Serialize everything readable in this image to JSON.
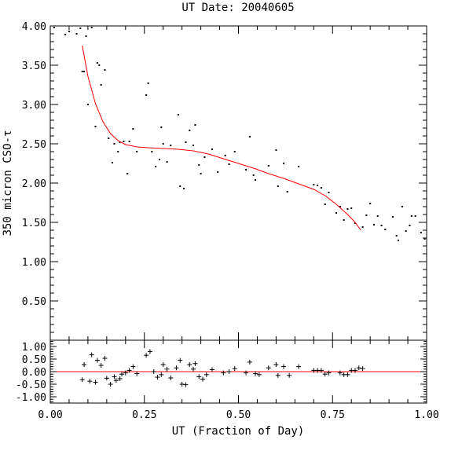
{
  "chart_data": [
    {
      "type": "scatter",
      "title": "UT Date: 20040605",
      "xlabel": "",
      "ylabel": "350 micron CSO-τ",
      "xlim": [
        0.0,
        1.0
      ],
      "ylim": [
        0.0,
        4.0
      ],
      "x_ticks": [
        "0.00",
        "0.25",
        "0.50",
        "0.75",
        "1.00"
      ],
      "y_ticks": [
        "0.50",
        "1.00",
        "1.50",
        "2.00",
        "2.50",
        "3.00",
        "3.50",
        "4.00"
      ],
      "grid": false,
      "point_color": "#000000",
      "fit_color": "#ff0000",
      "series": [
        {
          "points": [
            [
              0.01,
              3.98
            ],
            [
              0.04,
              3.89
            ],
            [
              0.05,
              3.93
            ],
            [
              0.07,
              3.9
            ],
            [
              0.08,
              3.97
            ],
            [
              0.085,
              3.42
            ],
            [
              0.09,
              3.42
            ],
            [
              0.095,
              3.87
            ],
            [
              0.1,
              3.0
            ],
            [
              0.11,
              3.98
            ],
            [
              0.12,
              2.72
            ],
            [
              0.125,
              3.53
            ],
            [
              0.13,
              3.5
            ],
            [
              0.135,
              3.25
            ],
            [
              0.145,
              3.44
            ],
            [
              0.155,
              2.57
            ],
            [
              0.165,
              2.26
            ],
            [
              0.17,
              2.5
            ],
            [
              0.18,
              2.4
            ],
            [
              0.185,
              2.52
            ],
            [
              0.195,
              2.53
            ],
            [
              0.205,
              2.12
            ],
            [
              0.21,
              2.53
            ],
            [
              0.22,
              2.69
            ],
            [
              0.23,
              2.4
            ],
            [
              0.255,
              3.12
            ],
            [
              0.26,
              3.27
            ],
            [
              0.27,
              2.4
            ],
            [
              0.28,
              2.21
            ],
            [
              0.29,
              2.3
            ],
            [
              0.295,
              2.71
            ],
            [
              0.3,
              2.5
            ],
            [
              0.31,
              2.27
            ],
            [
              0.32,
              2.48
            ],
            [
              0.34,
              2.87
            ],
            [
              0.345,
              1.96
            ],
            [
              0.355,
              1.93
            ],
            [
              0.36,
              2.52
            ],
            [
              0.37,
              2.67
            ],
            [
              0.38,
              2.48
            ],
            [
              0.385,
              2.74
            ],
            [
              0.395,
              2.23
            ],
            [
              0.4,
              2.12
            ],
            [
              0.41,
              2.33
            ],
            [
              0.43,
              2.43
            ],
            [
              0.445,
              2.14
            ],
            [
              0.465,
              2.35
            ],
            [
              0.475,
              2.24
            ],
            [
              0.49,
              2.4
            ],
            [
              0.52,
              2.17
            ],
            [
              0.53,
              2.59
            ],
            [
              0.54,
              2.1
            ],
            [
              0.545,
              2.04
            ],
            [
              0.58,
              2.22
            ],
            [
              0.6,
              2.42
            ],
            [
              0.605,
              1.96
            ],
            [
              0.62,
              2.25
            ],
            [
              0.63,
              1.89
            ],
            [
              0.66,
              2.21
            ],
            [
              0.7,
              1.98
            ],
            [
              0.71,
              1.97
            ],
            [
              0.72,
              1.94
            ],
            [
              0.73,
              1.73
            ],
            [
              0.74,
              1.88
            ],
            [
              0.76,
              1.62
            ],
            [
              0.77,
              1.7
            ],
            [
              0.78,
              1.53
            ],
            [
              0.79,
              1.67
            ],
            [
              0.8,
              1.68
            ],
            [
              0.81,
              1.49
            ],
            [
              0.83,
              1.44
            ],
            [
              0.84,
              1.59
            ],
            [
              0.85,
              1.74
            ],
            [
              0.86,
              1.47
            ],
            [
              0.87,
              1.58
            ],
            [
              0.88,
              1.46
            ],
            [
              0.89,
              1.41
            ],
            [
              0.91,
              1.57
            ],
            [
              0.92,
              1.33
            ],
            [
              0.925,
              1.27
            ],
            [
              0.935,
              1.7
            ],
            [
              0.945,
              1.39
            ],
            [
              0.955,
              1.46
            ],
            [
              0.96,
              1.58
            ],
            [
              0.97,
              1.58
            ],
            [
              0.985,
              1.37
            ],
            [
              0.995,
              1.29
            ]
          ]
        },
        {
          "fit": [
            [
              0.085,
              3.75
            ],
            [
              0.1,
              3.36
            ],
            [
              0.12,
              3.01
            ],
            [
              0.14,
              2.78
            ],
            [
              0.16,
              2.63
            ],
            [
              0.18,
              2.54
            ],
            [
              0.2,
              2.49
            ],
            [
              0.23,
              2.46
            ],
            [
              0.26,
              2.45
            ],
            [
              0.3,
              2.44
            ],
            [
              0.34,
              2.43
            ],
            [
              0.38,
              2.41
            ],
            [
              0.42,
              2.37
            ],
            [
              0.46,
              2.31
            ],
            [
              0.5,
              2.25
            ],
            [
              0.54,
              2.19
            ],
            [
              0.58,
              2.12
            ],
            [
              0.62,
              2.06
            ],
            [
              0.66,
              1.99
            ],
            [
              0.7,
              1.92
            ],
            [
              0.73,
              1.84
            ],
            [
              0.76,
              1.73
            ],
            [
              0.79,
              1.6
            ],
            [
              0.81,
              1.5
            ],
            [
              0.825,
              1.4
            ]
          ]
        }
      ]
    },
    {
      "type": "scatter",
      "title": "",
      "xlabel": "UT (Fraction of Day)",
      "ylabel": "",
      "xlim": [
        0.0,
        1.0
      ],
      "ylim": [
        -1.25,
        1.25
      ],
      "x_ticks": [
        "0.00",
        "0.25",
        "0.50",
        "0.75",
        "1.00"
      ],
      "y_ticks": [
        "1.00",
        "0.50",
        "0.00",
        "-0.50",
        "-1.00"
      ],
      "grid": false,
      "zero_line_color": "#ff0000",
      "marker": "+",
      "series": [
        {
          "points": [
            [
              0.085,
              -0.32
            ],
            [
              0.09,
              0.28
            ],
            [
              0.105,
              -0.38
            ],
            [
              0.11,
              0.67
            ],
            [
              0.12,
              -0.42
            ],
            [
              0.125,
              0.45
            ],
            [
              0.135,
              0.25
            ],
            [
              0.145,
              0.53
            ],
            [
              0.15,
              -0.26
            ],
            [
              0.16,
              -0.5
            ],
            [
              0.17,
              -0.2
            ],
            [
              0.175,
              -0.35
            ],
            [
              0.185,
              -0.28
            ],
            [
              0.19,
              -0.1
            ],
            [
              0.2,
              -0.05
            ],
            [
              0.21,
              0.05
            ],
            [
              0.22,
              0.2
            ],
            [
              0.23,
              -0.08
            ],
            [
              0.255,
              0.65
            ],
            [
              0.265,
              0.8
            ],
            [
              0.275,
              0.0
            ],
            [
              0.285,
              -0.22
            ],
            [
              0.295,
              -0.12
            ],
            [
              0.3,
              0.28
            ],
            [
              0.31,
              0.1
            ],
            [
              0.32,
              -0.25
            ],
            [
              0.335,
              0.15
            ],
            [
              0.345,
              0.45
            ],
            [
              0.35,
              -0.5
            ],
            [
              0.36,
              -0.52
            ],
            [
              0.37,
              0.28
            ],
            [
              0.38,
              0.1
            ],
            [
              0.385,
              0.32
            ],
            [
              0.395,
              -0.2
            ],
            [
              0.405,
              -0.3
            ],
            [
              0.415,
              -0.12
            ],
            [
              0.43,
              0.08
            ],
            [
              0.46,
              -0.05
            ],
            [
              0.475,
              0.0
            ],
            [
              0.49,
              0.12
            ],
            [
              0.52,
              -0.05
            ],
            [
              0.53,
              0.38
            ],
            [
              0.545,
              -0.08
            ],
            [
              0.555,
              -0.12
            ],
            [
              0.58,
              0.15
            ],
            [
              0.6,
              0.28
            ],
            [
              0.605,
              -0.15
            ],
            [
              0.62,
              0.2
            ],
            [
              0.635,
              -0.15
            ],
            [
              0.66,
              0.2
            ],
            [
              0.7,
              0.05
            ],
            [
              0.71,
              0.05
            ],
            [
              0.72,
              0.05
            ],
            [
              0.73,
              -0.1
            ],
            [
              0.74,
              -0.05
            ],
            [
              0.77,
              -0.05
            ],
            [
              0.78,
              -0.12
            ],
            [
              0.79,
              -0.12
            ],
            [
              0.8,
              0.05
            ],
            [
              0.81,
              0.05
            ],
            [
              0.82,
              0.15
            ],
            [
              0.83,
              0.12
            ]
          ]
        }
      ]
    }
  ]
}
